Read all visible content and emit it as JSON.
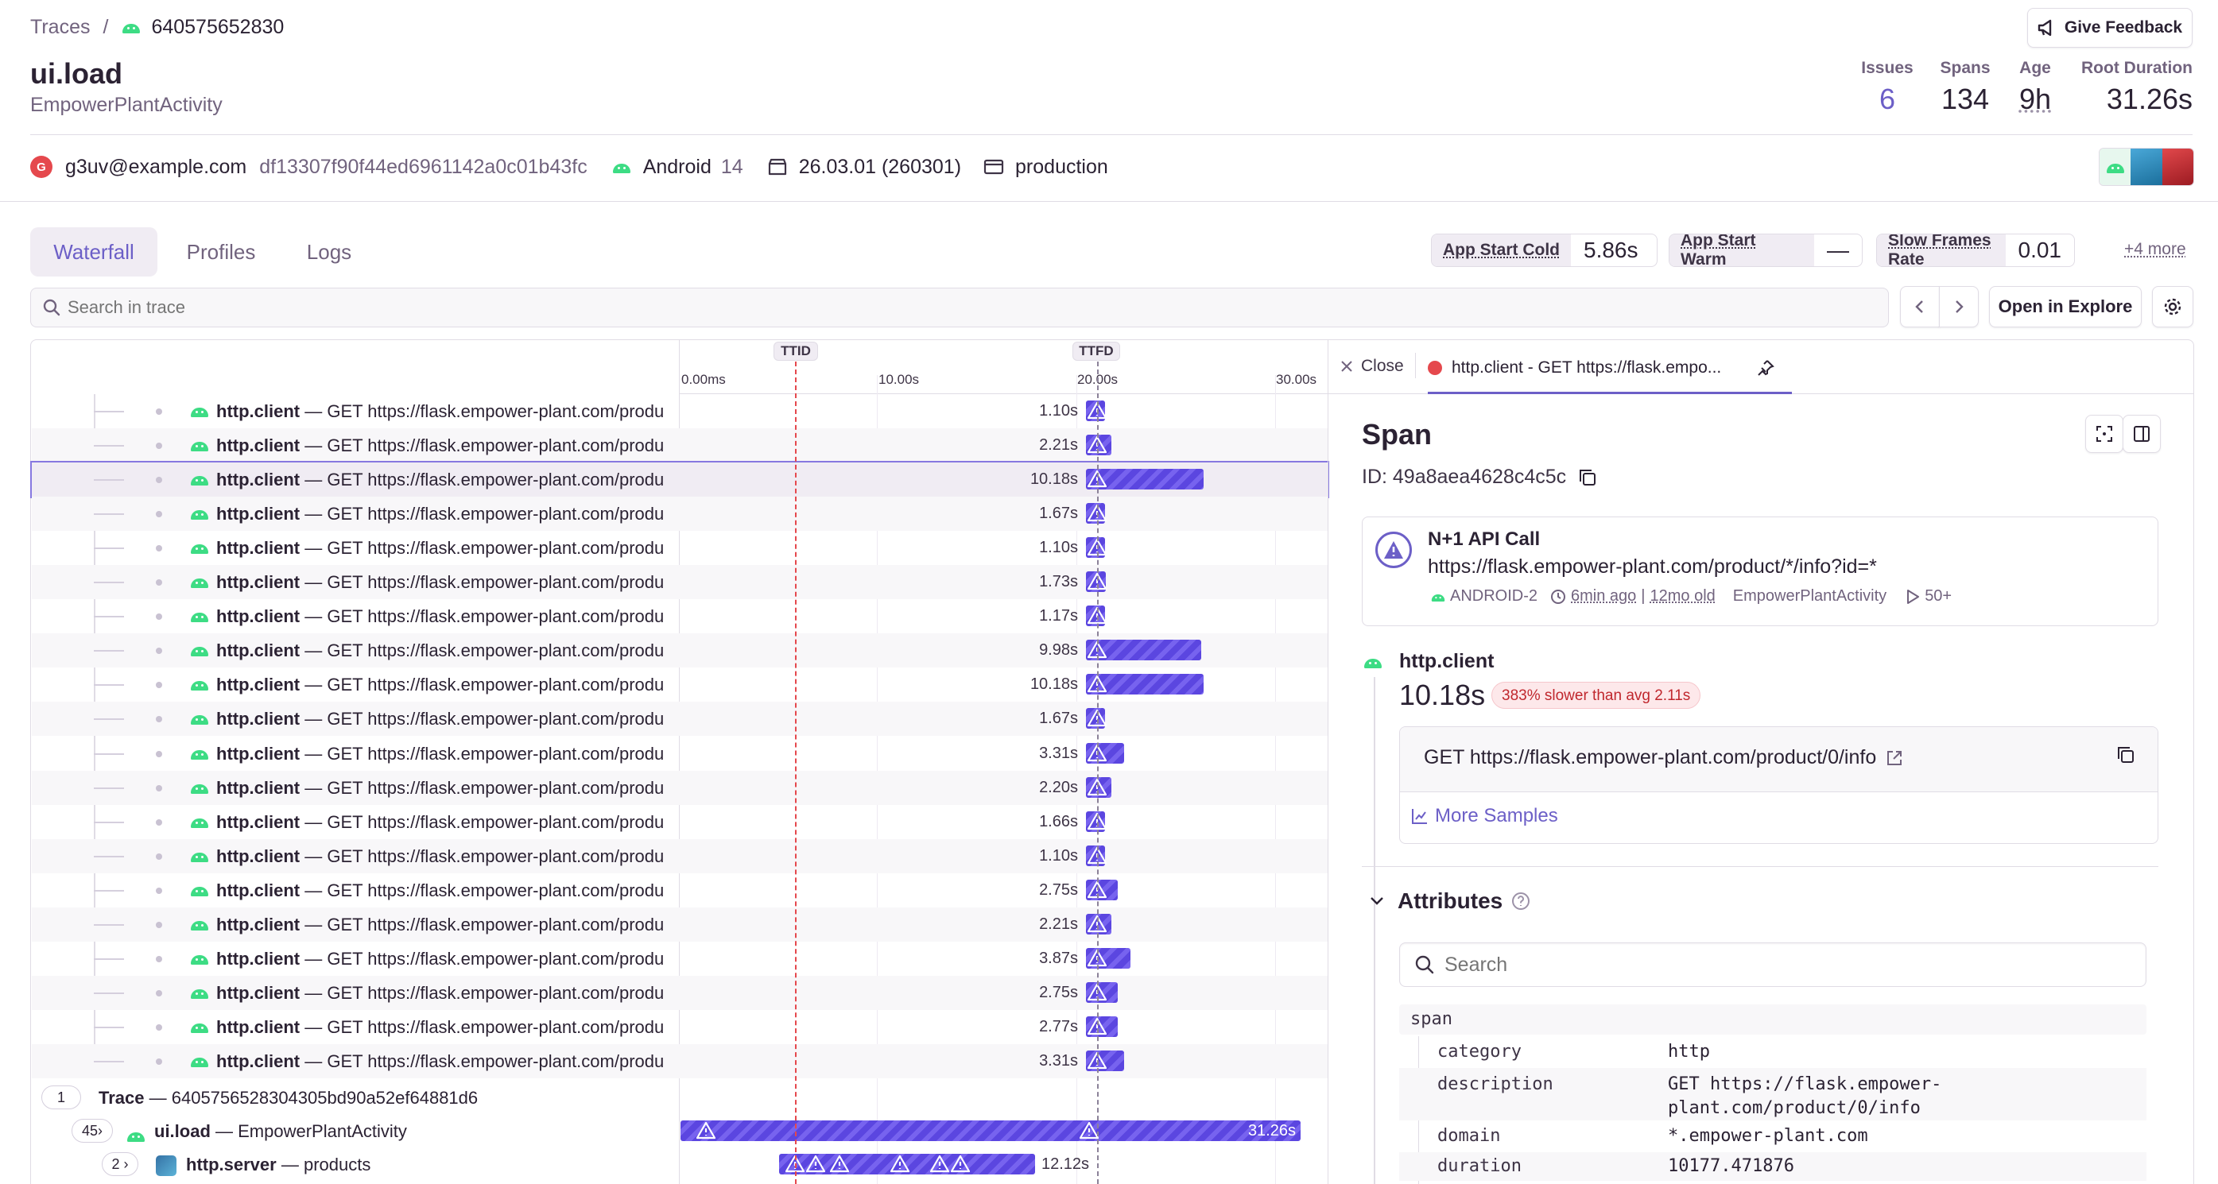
{
  "breadcrumb": {
    "root": "Traces",
    "separator": "/",
    "trace_short": "640575652830"
  },
  "header": {
    "title": "ui.load",
    "subtitle": "EmpowerPlantActivity",
    "feedback_label": "Give Feedback",
    "stats": [
      {
        "label": "Issues",
        "value": "6"
      },
      {
        "label": "Spans",
        "value": "134"
      },
      {
        "label": "Age",
        "value": "9h"
      },
      {
        "label": "Root Duration",
        "value": "31.26s"
      }
    ]
  },
  "meta": {
    "user_initial": "G",
    "user": "g3uv@example.com",
    "device_id": "df13307f90f44ed6961142a0c01b43fc",
    "os": "Android",
    "os_version": "14",
    "release": "26.03.01 (260301)",
    "environment": "production"
  },
  "tabs": [
    "Waterfall",
    "Profiles",
    "Logs"
  ],
  "metrics": [
    {
      "label": "App Start Cold",
      "value": "5.86s"
    },
    {
      "label": "App Start Warm",
      "value": "—"
    },
    {
      "label": "Slow Frames Rate",
      "value": "0.01"
    }
  ],
  "more_metrics": "+4 more",
  "search": {
    "placeholder": "Search in trace"
  },
  "toolbar": {
    "open_explore": "Open in Explore"
  },
  "timeline": {
    "markers": [
      "TTID",
      "TTFD"
    ],
    "ticks": [
      "0.00ms",
      "10.00s",
      "20.00s",
      "30.00s"
    ]
  },
  "spans": [
    {
      "op": "http.client",
      "desc": "GET https://flask.empower-plant.com/produ",
      "duration": "1.10s",
      "seconds": 1.1
    },
    {
      "op": "http.client",
      "desc": "GET https://flask.empower-plant.com/produ",
      "duration": "2.21s",
      "seconds": 2.21
    },
    {
      "op": "http.client",
      "desc": "GET https://flask.empower-plant.com/produ",
      "duration": "10.18s",
      "seconds": 10.18,
      "selected": true
    },
    {
      "op": "http.client",
      "desc": "GET https://flask.empower-plant.com/produ",
      "duration": "1.67s",
      "seconds": 1.67
    },
    {
      "op": "http.client",
      "desc": "GET https://flask.empower-plant.com/produ",
      "duration": "1.10s",
      "seconds": 1.1
    },
    {
      "op": "http.client",
      "desc": "GET https://flask.empower-plant.com/produ",
      "duration": "1.73s",
      "seconds": 1.73
    },
    {
      "op": "http.client",
      "desc": "GET https://flask.empower-plant.com/produ",
      "duration": "1.17s",
      "seconds": 1.17
    },
    {
      "op": "http.client",
      "desc": "GET https://flask.empower-plant.com/produ",
      "duration": "9.98s",
      "seconds": 9.98
    },
    {
      "op": "http.client",
      "desc": "GET https://flask.empower-plant.com/produ",
      "duration": "10.18s",
      "seconds": 10.18
    },
    {
      "op": "http.client",
      "desc": "GET https://flask.empower-plant.com/produ",
      "duration": "1.67s",
      "seconds": 1.67
    },
    {
      "op": "http.client",
      "desc": "GET https://flask.empower-plant.com/produ",
      "duration": "3.31s",
      "seconds": 3.31
    },
    {
      "op": "http.client",
      "desc": "GET https://flask.empower-plant.com/produ",
      "duration": "2.20s",
      "seconds": 2.2
    },
    {
      "op": "http.client",
      "desc": "GET https://flask.empower-plant.com/produ",
      "duration": "1.66s",
      "seconds": 1.66
    },
    {
      "op": "http.client",
      "desc": "GET https://flask.empower-plant.com/produ",
      "duration": "1.10s",
      "seconds": 1.1
    },
    {
      "op": "http.client",
      "desc": "GET https://flask.empower-plant.com/produ",
      "duration": "2.75s",
      "seconds": 2.75
    },
    {
      "op": "http.client",
      "desc": "GET https://flask.empower-plant.com/produ",
      "duration": "2.21s",
      "seconds": 2.21
    },
    {
      "op": "http.client",
      "desc": "GET https://flask.empower-plant.com/produ",
      "duration": "3.87s",
      "seconds": 3.87
    },
    {
      "op": "http.client",
      "desc": "GET https://flask.empower-plant.com/produ",
      "duration": "2.75s",
      "seconds": 2.75
    },
    {
      "op": "http.client",
      "desc": "GET https://flask.empower-plant.com/produ",
      "duration": "2.77s",
      "seconds": 2.77
    },
    {
      "op": "http.client",
      "desc": "GET https://flask.empower-plant.com/produ",
      "duration": "3.31s",
      "seconds": 3.31
    }
  ],
  "trace_rows": {
    "trace": {
      "count": "1",
      "label": "Trace",
      "id": "6405756528304305bd90a52ef64881d6"
    },
    "root": {
      "count": "45",
      "op": "ui.load",
      "desc": "EmpowerPlantActivity",
      "duration": "31.26s"
    },
    "server": {
      "count": "2",
      "op": "http.server",
      "desc": "products",
      "duration": "12.12s"
    }
  },
  "panel": {
    "close_label": "Close",
    "tab_label": "http.client - GET https://flask.empo...",
    "title": "Span",
    "id_label": "ID: 49a8aea4628c4c5c",
    "issue": {
      "title": "N+1 API Call",
      "url": "https://flask.empower-plant.com/product/*/info?id=*",
      "project": "ANDROID-2",
      "age": "6min ago",
      "first_seen": "12mo old",
      "transaction": "EmpowerPlantActivity",
      "events": "50+"
    },
    "span_op": "http.client",
    "span_duration": "10.18s",
    "slower_badge": "383% slower than avg 2.11s",
    "request": "GET https://flask.empower-plant.com/product/0/info",
    "more_samples": "More Samples",
    "attributes_title": "Attributes",
    "attr_search_placeholder": "Search",
    "attr_group": "span",
    "attributes": [
      {
        "key": "category",
        "value": "http"
      },
      {
        "key": "description",
        "value": "GET https://flask.empower-\nplant.com/product/0/info"
      },
      {
        "key": "domain",
        "value": "*.empower-plant.com"
      },
      {
        "key": "duration",
        "value": "10177.471876"
      }
    ]
  },
  "colors": {
    "accent": "#6c5fc7",
    "bar": "#5b46e0",
    "ttid": "#e5484d",
    "android": "#3ddc84",
    "error_badge": "#fde8ea"
  }
}
